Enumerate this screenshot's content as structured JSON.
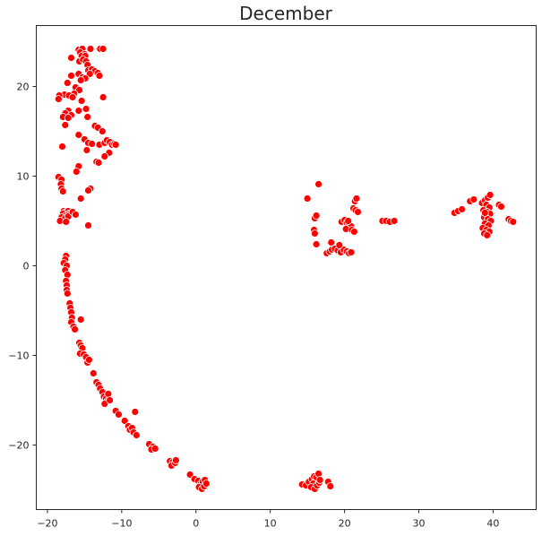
{
  "chart_data": {
    "type": "scatter",
    "title": "December",
    "xlabel": "",
    "ylabel": "",
    "xlim": [
      -21.5,
      45.8
    ],
    "ylim": [
      -27.2,
      26.8
    ],
    "xticks": [
      -20,
      -10,
      0,
      10,
      20,
      30,
      40
    ],
    "yticks": [
      -20,
      -10,
      0,
      10,
      20
    ],
    "xtick_labels": [
      "−20",
      "−10",
      "0",
      "10",
      "20",
      "30",
      "40"
    ],
    "ytick_labels": [
      "−20",
      "−10",
      "0",
      "10",
      "20"
    ],
    "grid": false,
    "legend": false,
    "marker_color": "#ff0000",
    "marker_edge_color": "#ffffff",
    "points": [
      [
        -15.8,
        24.1
      ],
      [
        -15.3,
        24.2
      ],
      [
        -15.6,
        23.8
      ],
      [
        -15.0,
        23.6
      ],
      [
        -14.2,
        24.2
      ],
      [
        -12.9,
        24.2
      ],
      [
        -12.5,
        24.2
      ],
      [
        -15.4,
        23.4
      ],
      [
        -14.9,
        23.4
      ],
      [
        -15.7,
        22.8
      ],
      [
        -15.2,
        23.0
      ],
      [
        -14.8,
        22.8
      ],
      [
        -16.8,
        23.2
      ],
      [
        -14.6,
        22.4
      ],
      [
        -14.5,
        21.8
      ],
      [
        -14.0,
        21.9
      ],
      [
        -13.6,
        21.7
      ],
      [
        -13.2,
        21.5
      ],
      [
        -13.0,
        21.2
      ],
      [
        -14.3,
        21.4
      ],
      [
        -15.8,
        21.4
      ],
      [
        -15.3,
        21.0
      ],
      [
        -14.9,
        20.9
      ],
      [
        -15.5,
        20.7
      ],
      [
        -16.8,
        21.2
      ],
      [
        -17.3,
        20.4
      ],
      [
        -16.2,
        19.9
      ],
      [
        -15.7,
        19.6
      ],
      [
        -16.4,
        19.2
      ],
      [
        -17.7,
        19.1
      ],
      [
        -17.1,
        19.0
      ],
      [
        -16.6,
        18.8
      ],
      [
        -18.4,
        19.0
      ],
      [
        -18.5,
        18.6
      ],
      [
        -15.4,
        18.4
      ],
      [
        -12.5,
        18.8
      ],
      [
        -14.8,
        17.5
      ],
      [
        -15.8,
        17.3
      ],
      [
        -17.2,
        17.3
      ],
      [
        -17.6,
        17.0
      ],
      [
        -16.8,
        16.8
      ],
      [
        -17.9,
        16.6
      ],
      [
        -17.2,
        16.5
      ],
      [
        -14.6,
        16.6
      ],
      [
        -17.6,
        15.7
      ],
      [
        -13.6,
        15.6
      ],
      [
        -13.2,
        15.4
      ],
      [
        -12.6,
        15.0
      ],
      [
        -15.8,
        14.6
      ],
      [
        -15.0,
        14.1
      ],
      [
        -14.5,
        13.7
      ],
      [
        -14.0,
        13.6
      ],
      [
        -13.0,
        13.5
      ],
      [
        -12.3,
        13.7
      ],
      [
        -12.0,
        14.0
      ],
      [
        -11.6,
        13.8
      ],
      [
        -11.3,
        13.5
      ],
      [
        -11.0,
        13.6
      ],
      [
        -10.8,
        13.5
      ],
      [
        -11.7,
        12.6
      ],
      [
        -12.3,
        12.2
      ],
      [
        -14.7,
        12.9
      ],
      [
        -18.0,
        13.3
      ],
      [
        -13.4,
        11.6
      ],
      [
        -13.1,
        11.5
      ],
      [
        -15.8,
        11.1
      ],
      [
        -16.1,
        10.5
      ],
      [
        -18.5,
        9.9
      ],
      [
        -18.1,
        9.6
      ],
      [
        -18.2,
        9.1
      ],
      [
        -18.1,
        8.6
      ],
      [
        -17.9,
        8.3
      ],
      [
        -14.2,
        8.6
      ],
      [
        -14.5,
        8.4
      ],
      [
        -15.5,
        7.5
      ],
      [
        -17.8,
        6.1
      ],
      [
        -17.5,
        6.0
      ],
      [
        -17.2,
        6.1
      ],
      [
        -17.9,
        5.8
      ],
      [
        -17.5,
        5.6
      ],
      [
        -17.1,
        5.8
      ],
      [
        -16.8,
        5.9
      ],
      [
        -18.1,
        5.4
      ],
      [
        -17.6,
        5.3
      ],
      [
        -17.2,
        5.5
      ],
      [
        -16.6,
        6.0
      ],
      [
        -18.3,
        5.0
      ],
      [
        -17.5,
        4.9
      ],
      [
        -16.2,
        5.7
      ],
      [
        -14.5,
        4.5
      ],
      [
        -17.5,
        1.1
      ],
      [
        -17.6,
        0.7
      ],
      [
        -17.8,
        0.3
      ],
      [
        -17.4,
        0.0
      ],
      [
        -17.6,
        -0.5
      ],
      [
        -17.3,
        -1.0
      ],
      [
        -17.5,
        -1.7
      ],
      [
        -17.4,
        -2.2
      ],
      [
        -17.4,
        -2.7
      ],
      [
        -17.3,
        -3.1
      ],
      [
        -17.0,
        -4.2
      ],
      [
        -16.9,
        -4.7
      ],
      [
        -16.8,
        -5.2
      ],
      [
        -16.7,
        -5.8
      ],
      [
        -16.8,
        -6.3
      ],
      [
        -16.5,
        -6.8
      ],
      [
        -16.3,
        -7.1
      ],
      [
        -15.5,
        -6.0
      ],
      [
        -15.7,
        -8.6
      ],
      [
        -15.5,
        -8.9
      ],
      [
        -15.3,
        -9.2
      ],
      [
        -15.6,
        -9.8
      ],
      [
        -15.1,
        -9.9
      ],
      [
        -14.8,
        -10.2
      ],
      [
        -14.6,
        -10.8
      ],
      [
        -14.4,
        -10.5
      ],
      [
        -13.8,
        -12.0
      ],
      [
        -13.4,
        -13.0
      ],
      [
        -13.1,
        -13.3
      ],
      [
        -12.9,
        -13.7
      ],
      [
        -12.6,
        -14.1
      ],
      [
        -12.4,
        -14.6
      ],
      [
        -12.1,
        -14.8
      ],
      [
        -11.8,
        -14.3
      ],
      [
        -11.9,
        -15.1
      ],
      [
        -12.3,
        -15.4
      ],
      [
        -11.6,
        -15.0
      ],
      [
        -10.8,
        -16.2
      ],
      [
        -10.4,
        -16.6
      ],
      [
        -9.6,
        -17.3
      ],
      [
        -9.1,
        -17.9
      ],
      [
        -8.9,
        -18.3
      ],
      [
        -8.6,
        -18.1
      ],
      [
        -8.4,
        -18.6
      ],
      [
        -8.0,
        -18.9
      ],
      [
        -8.2,
        -16.3
      ],
      [
        -6.3,
        -19.9
      ],
      [
        -5.8,
        -20.2
      ],
      [
        -6.0,
        -20.5
      ],
      [
        -5.5,
        -20.4
      ],
      [
        -3.5,
        -21.8
      ],
      [
        -3.1,
        -21.9
      ],
      [
        -3.3,
        -22.3
      ],
      [
        -2.8,
        -22.0
      ],
      [
        -2.7,
        -21.7
      ],
      [
        -0.8,
        -23.3
      ],
      [
        -0.2,
        -23.8
      ],
      [
        0.3,
        -24.0
      ],
      [
        0.6,
        -24.4
      ],
      [
        0.9,
        -24.1
      ],
      [
        1.2,
        -23.9
      ],
      [
        0.4,
        -24.7
      ],
      [
        0.8,
        -24.9
      ],
      [
        1.1,
        -24.6
      ],
      [
        1.4,
        -24.3
      ],
      [
        14.3,
        -24.4
      ],
      [
        14.8,
        -24.5
      ],
      [
        15.2,
        -24.1
      ],
      [
        15.6,
        -23.8
      ],
      [
        15.9,
        -23.5
      ],
      [
        15.8,
        -24.3
      ],
      [
        15.5,
        -24.7
      ],
      [
        16.0,
        -24.9
      ],
      [
        16.3,
        -24.5
      ],
      [
        16.6,
        -24.2
      ],
      [
        16.2,
        -23.6
      ],
      [
        16.5,
        -23.2
      ],
      [
        16.7,
        -23.9
      ],
      [
        17.8,
        -24.1
      ],
      [
        18.1,
        -24.6
      ],
      [
        15.0,
        7.5
      ],
      [
        16.5,
        9.1
      ],
      [
        16.0,
        5.3
      ],
      [
        16.2,
        5.6
      ],
      [
        15.9,
        4.0
      ],
      [
        16.0,
        3.6
      ],
      [
        16.2,
        2.4
      ],
      [
        17.6,
        1.4
      ],
      [
        18.0,
        1.6
      ],
      [
        18.3,
        1.8
      ],
      [
        18.7,
        1.9
      ],
      [
        19.1,
        1.7
      ],
      [
        19.5,
        1.5
      ],
      [
        19.9,
        1.8
      ],
      [
        20.3,
        1.6
      ],
      [
        20.6,
        1.4
      ],
      [
        20.9,
        1.5
      ],
      [
        18.2,
        2.6
      ],
      [
        19.3,
        2.3
      ],
      [
        19.6,
        4.9
      ],
      [
        20.0,
        5.1
      ],
      [
        20.3,
        4.8
      ],
      [
        20.6,
        4.6
      ],
      [
        20.9,
        4.4
      ],
      [
        20.2,
        4.1
      ],
      [
        21.0,
        4.0
      ],
      [
        21.3,
        3.8
      ],
      [
        21.2,
        6.4
      ],
      [
        21.5,
        6.2
      ],
      [
        21.8,
        6.0
      ],
      [
        21.4,
        7.2
      ],
      [
        21.6,
        7.5
      ],
      [
        20.5,
        5.0
      ],
      [
        25.1,
        5.0
      ],
      [
        25.6,
        5.0
      ],
      [
        26.1,
        4.9
      ],
      [
        26.7,
        5.0
      ],
      [
        34.8,
        5.9
      ],
      [
        35.3,
        6.1
      ],
      [
        35.8,
        6.3
      ],
      [
        36.9,
        7.2
      ],
      [
        37.4,
        7.4
      ],
      [
        38.5,
        7.0
      ],
      [
        38.9,
        7.3
      ],
      [
        39.3,
        7.6
      ],
      [
        39.6,
        7.9
      ],
      [
        39.1,
        6.8
      ],
      [
        39.5,
        6.5
      ],
      [
        38.7,
        6.2
      ],
      [
        39.2,
        6.0
      ],
      [
        39.6,
        5.8
      ],
      [
        38.8,
        5.4
      ],
      [
        39.3,
        5.2
      ],
      [
        39.7,
        5.0
      ],
      [
        38.9,
        4.7
      ],
      [
        39.4,
        4.5
      ],
      [
        38.6,
        4.2
      ],
      [
        39.1,
        4.0
      ],
      [
        39.5,
        3.8
      ],
      [
        38.8,
        3.6
      ],
      [
        39.2,
        3.4
      ],
      [
        38.9,
        5.9
      ],
      [
        40.8,
        6.8
      ],
      [
        41.1,
        6.6
      ],
      [
        42.1,
        5.2
      ],
      [
        42.4,
        5.0
      ],
      [
        42.7,
        4.9
      ]
    ]
  }
}
